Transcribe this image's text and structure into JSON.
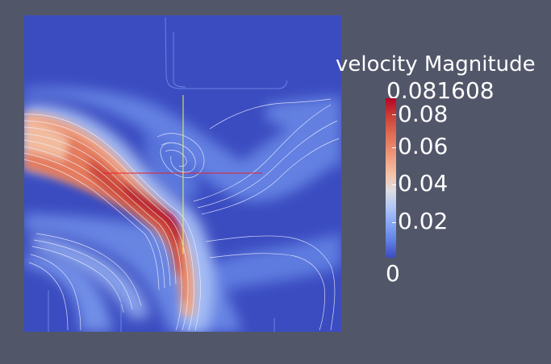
{
  "render": {
    "background": "#525669",
    "domain_color": "#3b4cc0",
    "color_map": [
      "#3b4cc0",
      "#88a9f7",
      "#dcdde1",
      "#f4c3a9",
      "#dd6a52",
      "#b40426"
    ],
    "probe_axis_colors": {
      "horizontal": "#e8212b",
      "vertical": "#f5f538"
    },
    "streamline_color": "#eef0ff"
  },
  "legend": {
    "title": "velocity Magnitude",
    "max_value": "0.081608",
    "min_value": "0",
    "ticks": [
      {
        "label": "0.08",
        "value": 0.08
      },
      {
        "label": "0.06",
        "value": 0.06
      },
      {
        "label": "0.04",
        "value": 0.04
      },
      {
        "label": "0.02",
        "value": 0.02
      }
    ]
  }
}
